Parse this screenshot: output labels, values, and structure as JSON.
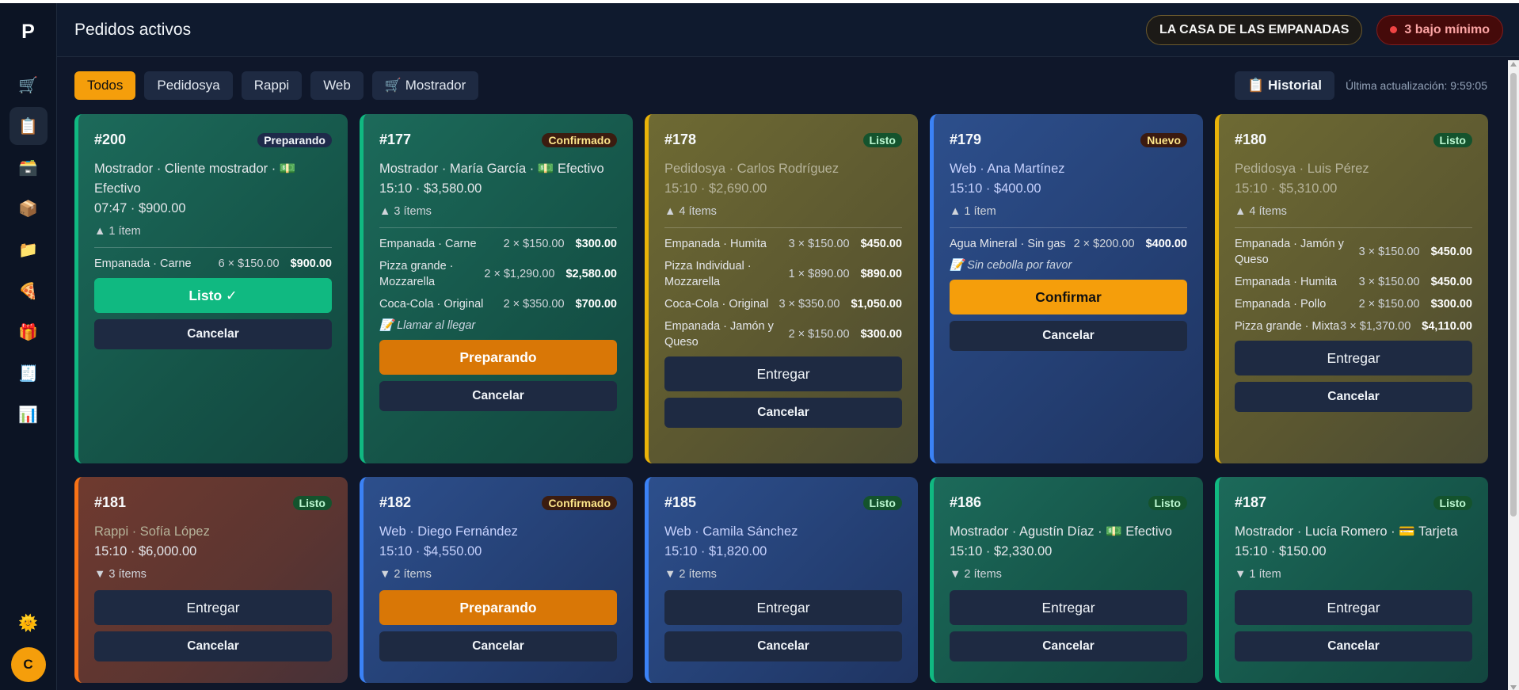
{
  "sidebar": {
    "logo": "P",
    "items": [
      {
        "icon": "cart-icon",
        "glyph": "🛒"
      },
      {
        "icon": "clipboard-icon",
        "glyph": "📋"
      },
      {
        "icon": "cash-register-icon",
        "glyph": "🗃️"
      },
      {
        "icon": "box-icon",
        "glyph": "📦"
      },
      {
        "icon": "folder-icon",
        "glyph": "📁"
      },
      {
        "icon": "pizza-icon",
        "glyph": "🍕"
      },
      {
        "icon": "gift-icon",
        "glyph": "🎁"
      },
      {
        "icon": "clipboard-list-icon",
        "glyph": "🧾"
      },
      {
        "icon": "chart-icon",
        "glyph": "📊"
      }
    ],
    "theme_glyph": "🌞",
    "avatar": "C"
  },
  "header": {
    "title": "Pedidos activos",
    "store": "LA CASA DE LAS EMPANADAS",
    "stock_alert": "3 bajo mínimo"
  },
  "toolbar": {
    "filters": [
      "Todos",
      "Pedidosya",
      "Rappi",
      "Web",
      "🛒 Mostrador"
    ],
    "history": "📋 Historial",
    "updated": "Última actualización: 9:59:05"
  },
  "orders": [
    {
      "number": "#200",
      "status": "Preparando",
      "meta1": "Mostrador · Cliente mostrador · 💵 Efectivo",
      "meta2": "07:47 · $900.00",
      "toggle": "▲ 1 ítem",
      "items": [
        {
          "name": "Empanada · Carne",
          "qty": "6 × $150.00",
          "total": "$900.00"
        }
      ],
      "note": "",
      "action": "Listo ✓",
      "cancel": "Cancelar"
    },
    {
      "number": "#177",
      "status": "Confirmado",
      "meta1": "Mostrador · María García · 💵 Efectivo",
      "meta2": "15:10 · $3,580.00",
      "toggle": "▲ 3 ítems",
      "items": [
        {
          "name": "Empanada · Carne",
          "qty": "2 × $150.00",
          "total": "$300.00"
        },
        {
          "name": "Pizza grande · Mozzarella",
          "qty": "2 × $1,290.00",
          "total": "$2,580.00"
        },
        {
          "name": "Coca-Cola · Original",
          "qty": "2 × $350.00",
          "total": "$700.00"
        }
      ],
      "note": "📝 Llamar al llegar",
      "action": "Preparando",
      "cancel": "Cancelar"
    },
    {
      "number": "#178",
      "status": "Listo",
      "meta1": "Pedidosya · Carlos Rodríguez",
      "meta2": "15:10 · $2,690.00",
      "toggle": "▲ 4 ítems",
      "items": [
        {
          "name": "Empanada · Humita",
          "qty": "3 × $150.00",
          "total": "$450.00"
        },
        {
          "name": "Pizza Individual · Mozzarella",
          "qty": "1 × $890.00",
          "total": "$890.00"
        },
        {
          "name": "Coca-Cola · Original",
          "qty": "3 × $350.00",
          "total": "$1,050.00"
        },
        {
          "name": "Empanada · Jamón y Queso",
          "qty": "2 × $150.00",
          "total": "$300.00"
        }
      ],
      "note": "",
      "action": "Entregar",
      "cancel": "Cancelar"
    },
    {
      "number": "#179",
      "status": "Nuevo",
      "meta1": "Web · Ana Martínez",
      "meta2": "15:10 · $400.00",
      "toggle": "▲ 1 ítem",
      "items": [
        {
          "name": "Agua Mineral · Sin gas",
          "qty": "2 × $200.00",
          "total": "$400.00"
        }
      ],
      "note": "📝 Sin cebolla por favor",
      "action": "Confirmar",
      "cancel": "Cancelar"
    },
    {
      "number": "#180",
      "status": "Listo",
      "meta1": "Pedidosya · Luis Pérez",
      "meta2": "15:10 · $5,310.00",
      "toggle": "▲ 4 ítems",
      "items": [
        {
          "name": "Empanada · Jamón y Queso",
          "qty": "3 × $150.00",
          "total": "$450.00"
        },
        {
          "name": "Empanada · Humita",
          "qty": "3 × $150.00",
          "total": "$450.00"
        },
        {
          "name": "Empanada · Pollo",
          "qty": "2 × $150.00",
          "total": "$300.00"
        },
        {
          "name": "Pizza grande · Mixta",
          "qty": "3 × $1,370.00",
          "total": "$4,110.00"
        }
      ],
      "note": "",
      "action": "Entregar",
      "cancel": "Cancelar"
    },
    {
      "number": "#181",
      "status": "Listo",
      "meta1": "Rappi · Sofía López",
      "meta2": "15:10 · $6,000.00",
      "toggle": "▼ 3 ítems",
      "action": "Entregar",
      "cancel": "Cancelar"
    },
    {
      "number": "#182",
      "status": "Confirmado",
      "meta1": "Web · Diego Fernández",
      "meta2": "15:10 · $4,550.00",
      "toggle": "▼ 2 ítems",
      "action": "Preparando",
      "cancel": "Cancelar"
    },
    {
      "number": "#185",
      "status": "Listo",
      "meta1": "Web · Camila Sánchez",
      "meta2": "15:10 · $1,820.00",
      "toggle": "▼ 2 ítems",
      "action": "Entregar",
      "cancel": "Cancelar"
    },
    {
      "number": "#186",
      "status": "Listo",
      "meta1": "Mostrador · Agustín Díaz · 💵 Efectivo",
      "meta2": "15:10 · $2,330.00",
      "toggle": "▼ 2 ítems",
      "action": "Entregar",
      "cancel": "Cancelar"
    },
    {
      "number": "#187",
      "status": "Listo",
      "meta1": "Mostrador · Lucía Romero · 💳 Tarjeta",
      "meta2": "15:10 · $150.00",
      "toggle": "▼ 1 ítem",
      "action": "Entregar",
      "cancel": "Cancelar"
    }
  ]
}
